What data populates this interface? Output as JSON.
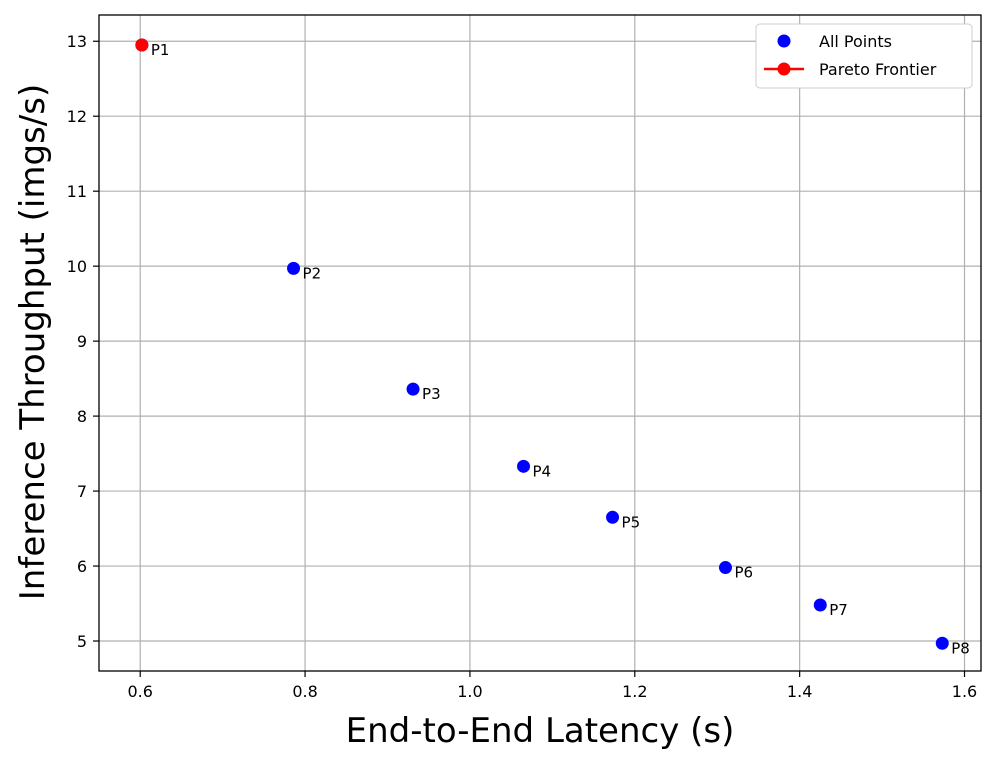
{
  "chart_data": {
    "type": "scatter",
    "xlabel": "End-to-End Latency (s)",
    "ylabel": "Inference Throughput (imgs/s)",
    "xlim": [
      0.55,
      1.62
    ],
    "ylim": [
      4.6,
      13.35
    ],
    "xticks": [
      0.6,
      0.8,
      1.0,
      1.2,
      1.4,
      1.6
    ],
    "xtick_labels": [
      "0.6",
      "0.8",
      "1.0",
      "1.2",
      "1.4",
      "1.6"
    ],
    "yticks": [
      5,
      6,
      7,
      8,
      9,
      10,
      11,
      12,
      13
    ],
    "ytick_labels": [
      "5",
      "6",
      "7",
      "8",
      "9",
      "10",
      "11",
      "12",
      "13"
    ],
    "grid": true,
    "legend_position": "top-right",
    "series": [
      {
        "name": "All Points",
        "color": "#0000ff",
        "marker": "circle",
        "points": [
          {
            "label": "P1",
            "x": 0.602,
            "y": 12.95
          },
          {
            "label": "P2",
            "x": 0.786,
            "y": 9.97
          },
          {
            "label": "P3",
            "x": 0.931,
            "y": 8.36
          },
          {
            "label": "P4",
            "x": 1.065,
            "y": 7.33
          },
          {
            "label": "P5",
            "x": 1.173,
            "y": 6.65
          },
          {
            "label": "P6",
            "x": 1.31,
            "y": 5.98
          },
          {
            "label": "P7",
            "x": 1.425,
            "y": 5.48
          },
          {
            "label": "P8",
            "x": 1.573,
            "y": 4.97
          }
        ]
      },
      {
        "name": "Pareto Frontier",
        "color": "#ff0000",
        "marker": "circle-line",
        "points": [
          {
            "x": 0.602,
            "y": 12.95
          }
        ]
      }
    ]
  }
}
